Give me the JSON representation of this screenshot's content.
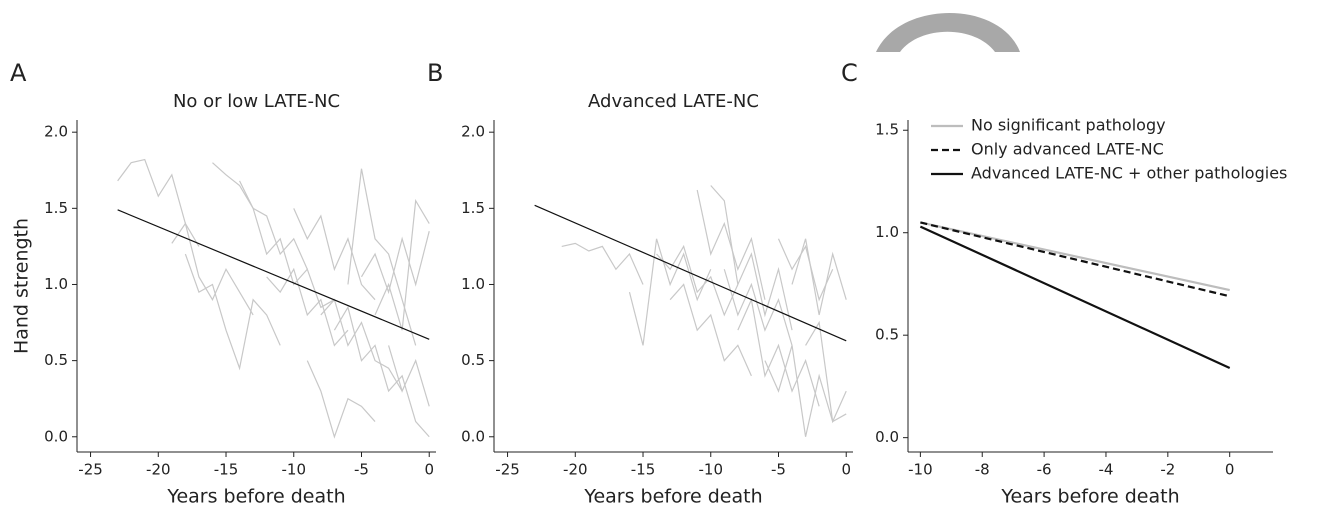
{
  "chart_data": [
    {
      "type": "line",
      "panel_label": "A",
      "title": "No or low LATE-NC",
      "xlabel": "Years before death",
      "ylabel": "Hand strength",
      "xlim": [
        -26,
        0.5
      ],
      "ylim": [
        -0.1,
        2.08
      ],
      "xticks": [
        -25,
        -20,
        -15,
        -10,
        -5,
        0
      ],
      "yticks": [
        {
          "value": 0,
          "label": "0.0"
        },
        0.5,
        {
          "value": 1,
          "label": "1.0"
        },
        1.5,
        {
          "value": 2,
          "label": "2.0"
        }
      ],
      "series": [
        {
          "color": "#c8c8c8",
          "x": [
            -23,
            -22,
            -21,
            -20,
            -19,
            -18,
            -17
          ],
          "values": [
            1.68,
            1.8,
            1.82,
            1.58,
            1.72,
            1.4,
            1.25
          ]
        },
        {
          "color": "#c8c8c8",
          "x": [
            -19,
            -18,
            -17,
            -16,
            -15,
            -14,
            -13
          ],
          "values": [
            1.27,
            1.4,
            1.05,
            0.9,
            1.1,
            0.95,
            0.8
          ]
        },
        {
          "color": "#c8c8c8",
          "x": [
            -16,
            -15,
            -14,
            -13,
            -12,
            -11,
            -10,
            -9
          ],
          "values": [
            1.8,
            1.72,
            1.65,
            1.5,
            1.45,
            1.2,
            1.3,
            1.1
          ]
        },
        {
          "color": "#c8c8c8",
          "x": [
            -14,
            -13,
            -12,
            -11,
            -10,
            -9,
            -8,
            -7
          ],
          "values": [
            1.68,
            1.5,
            1.2,
            1.3,
            1.0,
            1.1,
            0.85,
            0.9
          ]
        },
        {
          "color": "#c8c8c8",
          "x": [
            -12,
            -11,
            -10,
            -9,
            -8,
            -7,
            -6
          ],
          "values": [
            1.05,
            0.95,
            1.1,
            0.8,
            0.9,
            0.6,
            0.7
          ]
        },
        {
          "color": "#c8c8c8",
          "x": [
            -10,
            -9,
            -8,
            -7,
            -6,
            -5,
            -4
          ],
          "values": [
            1.5,
            1.3,
            1.45,
            1.1,
            1.3,
            1.0,
            0.9
          ]
        },
        {
          "color": "#c8c8c8",
          "x": [
            -8,
            -7,
            -6,
            -5,
            -4,
            -3,
            -2
          ],
          "values": [
            0.8,
            0.9,
            0.6,
            0.75,
            0.5,
            0.45,
            0.3
          ]
        },
        {
          "color": "#c8c8c8",
          "x": [
            -6,
            -5,
            -4,
            -3,
            -2,
            -1
          ],
          "values": [
            1.0,
            1.76,
            1.3,
            1.2,
            0.9,
            0.6
          ]
        },
        {
          "color": "#c8c8c8",
          "x": [
            -7,
            -6,
            -5,
            -4,
            -3,
            -2,
            -1,
            0
          ],
          "values": [
            0.7,
            0.85,
            0.5,
            0.6,
            0.3,
            0.4,
            0.1,
            0.0
          ]
        },
        {
          "color": "#c8c8c8",
          "x": [
            -4,
            -3,
            -2,
            -1,
            0
          ],
          "values": [
            0.8,
            1.0,
            0.7,
            1.55,
            1.4
          ]
        },
        {
          "color": "#c8c8c8",
          "x": [
            -9,
            -8,
            -7,
            -6,
            -5,
            -4
          ],
          "values": [
            0.5,
            0.3,
            0.0,
            0.25,
            0.2,
            0.1
          ]
        },
        {
          "color": "#c8c8c8",
          "x": [
            -18,
            -17,
            -16,
            -15,
            -14,
            -13,
            -12,
            -11
          ],
          "values": [
            1.2,
            0.95,
            1.0,
            0.7,
            0.45,
            0.9,
            0.8,
            0.6
          ]
        },
        {
          "color": "#c8c8c8",
          "x": [
            -3,
            -2,
            -1,
            0
          ],
          "values": [
            0.6,
            0.3,
            0.5,
            0.2
          ]
        },
        {
          "color": "#c8c8c8",
          "x": [
            -5,
            -4,
            -3,
            -2,
            -1,
            0
          ],
          "values": [
            1.05,
            1.2,
            0.95,
            1.3,
            1.0,
            1.35
          ]
        },
        {
          "color": "#111111",
          "x": [
            -23,
            0
          ],
          "values": [
            1.49,
            0.64
          ]
        }
      ]
    },
    {
      "type": "line",
      "panel_label": "B",
      "title": "Advanced LATE-NC",
      "xlabel": "Years before death",
      "xlim": [
        -26,
        0.5
      ],
      "ylim": [
        -0.1,
        2.08
      ],
      "xticks": [
        -25,
        -20,
        -15,
        -10,
        -5,
        0
      ],
      "yticks": [
        {
          "value": 0,
          "label": "0.0"
        },
        0.5,
        {
          "value": 1,
          "label": "1.0"
        },
        1.5,
        {
          "value": 2,
          "label": "2.0"
        }
      ],
      "series": [
        {
          "color": "#c8c8c8",
          "x": [
            -21,
            -20,
            -19,
            -18,
            -17,
            -16,
            -15
          ],
          "values": [
            1.25,
            1.27,
            1.22,
            1.25,
            1.1,
            1.2,
            1.0
          ]
        },
        {
          "color": "#c8c8c8",
          "x": [
            -16,
            -15,
            -14,
            -13,
            -12,
            -11,
            -10
          ],
          "values": [
            0.95,
            0.6,
            1.3,
            1.0,
            1.2,
            0.9,
            1.1
          ]
        },
        {
          "color": "#c8c8c8",
          "x": [
            -11,
            -10,
            -9,
            -8,
            -7,
            -6
          ],
          "values": [
            1.62,
            1.2,
            1.4,
            1.1,
            1.3,
            0.9
          ]
        },
        {
          "color": "#c8c8c8",
          "x": [
            -10,
            -9,
            -8,
            -7,
            -6,
            -5,
            -4
          ],
          "values": [
            1.65,
            1.55,
            1.0,
            1.2,
            0.8,
            1.1,
            0.7
          ]
        },
        {
          "color": "#c8c8c8",
          "x": [
            -13,
            -12,
            -11,
            -10,
            -9,
            -8,
            -7
          ],
          "values": [
            0.9,
            1.0,
            0.7,
            0.8,
            0.5,
            0.6,
            0.4
          ]
        },
        {
          "color": "#c8c8c8",
          "x": [
            -8,
            -7,
            -6,
            -5,
            -4,
            -3,
            -2
          ],
          "values": [
            0.7,
            0.9,
            0.4,
            0.6,
            0.3,
            0.5,
            0.2
          ]
        },
        {
          "color": "#c8c8c8",
          "x": [
            -5,
            -4,
            -3,
            -2,
            -1
          ],
          "values": [
            1.3,
            1.1,
            1.25,
            0.9,
            1.1
          ]
        },
        {
          "color": "#c8c8c8",
          "x": [
            -6,
            -5,
            -4,
            -3,
            -2,
            -1,
            0
          ],
          "values": [
            0.5,
            0.3,
            0.6,
            0.0,
            0.4,
            0.1,
            0.3
          ]
        },
        {
          "color": "#c8c8c8",
          "x": [
            -4,
            -3,
            -2,
            -1,
            0
          ],
          "values": [
            1.0,
            1.3,
            0.8,
            1.2,
            0.9
          ]
        },
        {
          "color": "#c8c8c8",
          "x": [
            -9,
            -8,
            -7,
            -6,
            -5,
            -4
          ],
          "values": [
            1.1,
            0.8,
            1.0,
            0.7,
            0.9,
            0.6
          ]
        },
        {
          "color": "#c8c8c8",
          "x": [
            -14,
            -13,
            -12,
            -11,
            -10,
            -9,
            -8
          ],
          "values": [
            1.2,
            1.1,
            1.25,
            0.95,
            1.05,
            0.8,
            1.0
          ]
        },
        {
          "color": "#c8c8c8",
          "x": [
            -3,
            -2,
            -1,
            0
          ],
          "values": [
            0.6,
            0.75,
            0.1,
            0.15
          ]
        },
        {
          "color": "#111111",
          "x": [
            -23,
            0
          ],
          "values": [
            1.52,
            0.63
          ]
        }
      ]
    },
    {
      "type": "line",
      "panel_label": "C",
      "xlabel": "Years before death",
      "xlim": [
        -10.4,
        1.4
      ],
      "ylim": [
        -0.07,
        1.55
      ],
      "xticks": [
        -10,
        -8,
        -6,
        -4,
        -2,
        0
      ],
      "yticks": [
        {
          "value": 0,
          "label": "0.0"
        },
        0.5,
        {
          "value": 1,
          "label": "1.0"
        },
        1.5
      ],
      "legend": "upper left",
      "series": [
        {
          "name": "No significant pathology",
          "color": "#bdbdbd",
          "x": [
            -10,
            0
          ],
          "values": [
            1.05,
            0.72
          ]
        },
        {
          "name": "Only advanced LATE-NC",
          "color": "#111111",
          "dashed": true,
          "x": [
            -10,
            0
          ],
          "values": [
            1.05,
            0.69
          ]
        },
        {
          "name": "Advanced LATE-NC + other pathologies",
          "color": "#111111",
          "x": [
            -10,
            0
          ],
          "values": [
            1.03,
            0.34
          ]
        }
      ]
    }
  ]
}
